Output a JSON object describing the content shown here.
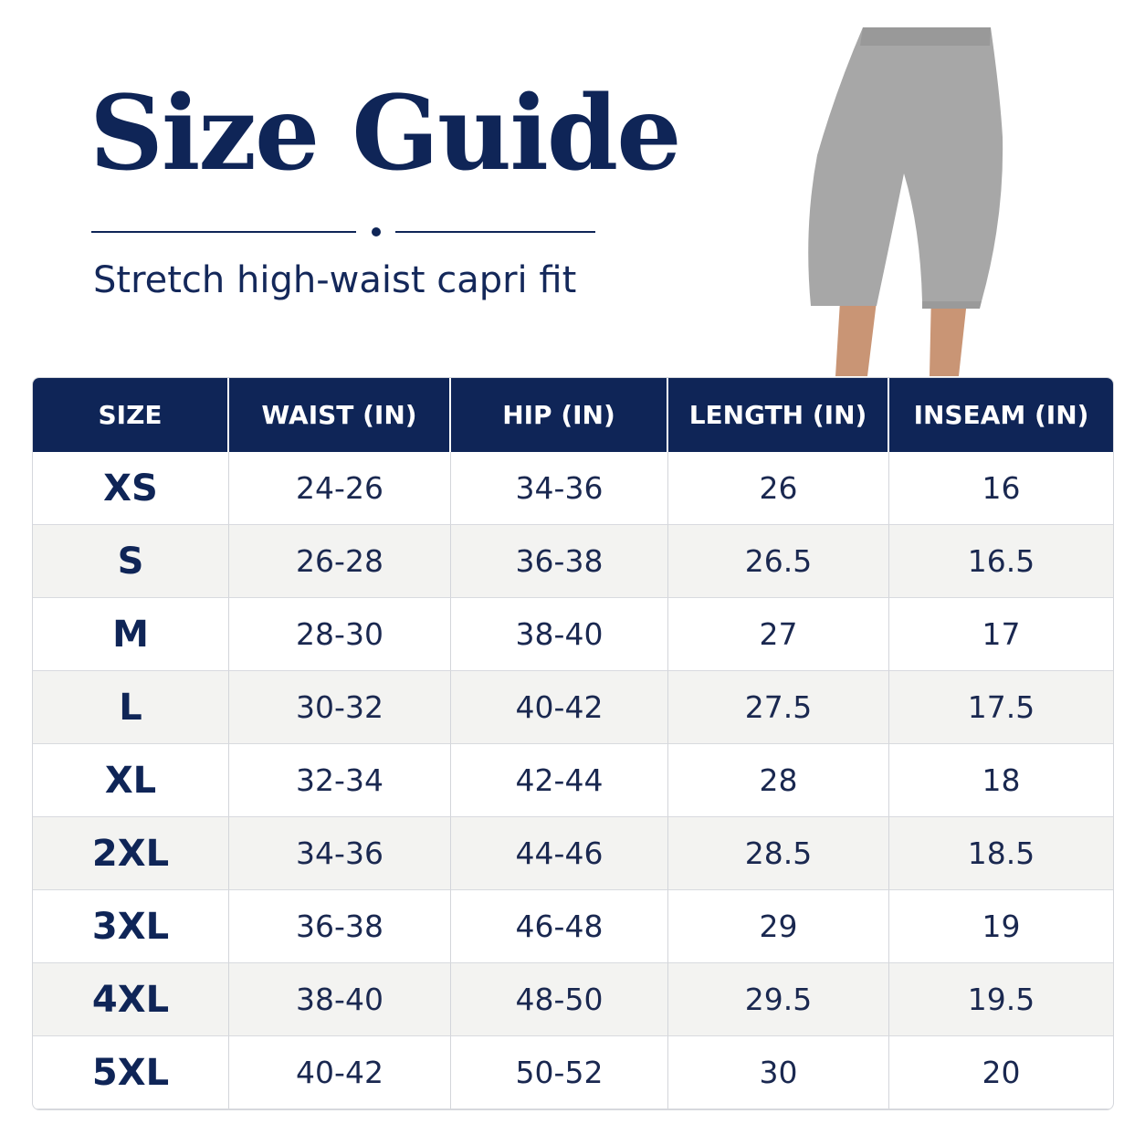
{
  "header": {
    "title": "Size Guide",
    "subtitle": "Stretch high-waist capri fit"
  },
  "table": {
    "columns": [
      "SIZE",
      "WAIST (IN)",
      "HIP (IN)",
      "LENGTH (IN)",
      "INSEAM (IN)"
    ],
    "rows": [
      [
        "XS",
        "24-26",
        "34-36",
        "26",
        "16"
      ],
      [
        "S",
        "26-28",
        "36-38",
        "26.5",
        "16.5"
      ],
      [
        "M",
        "28-30",
        "38-40",
        "27",
        "17"
      ],
      [
        "L",
        "30-32",
        "40-42",
        "27.5",
        "17.5"
      ],
      [
        "XL",
        "32-34",
        "42-44",
        "28",
        "18"
      ],
      [
        "2XL",
        "34-36",
        "44-46",
        "28.5",
        "18.5"
      ],
      [
        "3XL",
        "36-38",
        "46-48",
        "29",
        "19"
      ],
      [
        "4XL",
        "38-40",
        "48-50",
        "29.5",
        "19.5"
      ],
      [
        "5XL",
        "40-42",
        "50-52",
        "30",
        "20"
      ]
    ]
  }
}
